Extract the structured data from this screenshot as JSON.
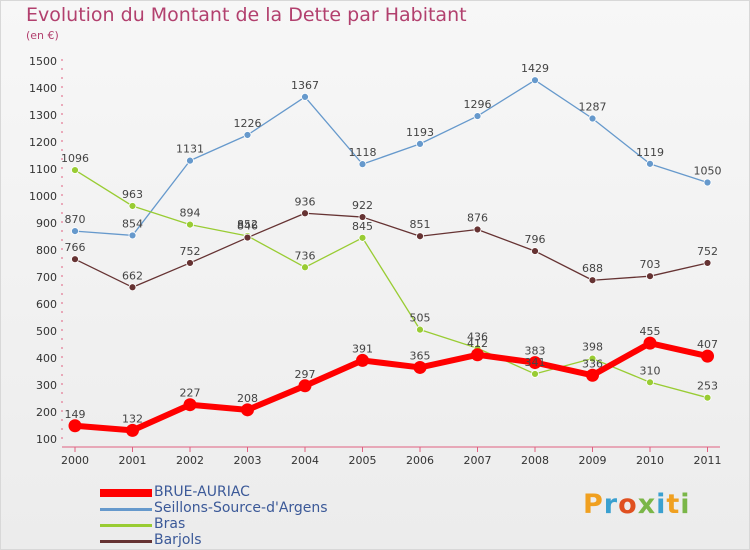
{
  "title": "Evolution du Montant de la Dette par Habitant",
  "subtitle": "(en €)",
  "logo": "Proxiti",
  "chart_data": {
    "type": "line",
    "title": "Evolution du Montant de la Dette par Habitant",
    "ylabel": "(en €)",
    "ylim": [
      100,
      1500
    ],
    "yticks": [
      100,
      200,
      300,
      400,
      500,
      600,
      700,
      800,
      900,
      1000,
      1100,
      1200,
      1300,
      1400,
      1500
    ],
    "categories": [
      "2000",
      "2001",
      "2002",
      "2003",
      "2004",
      "2005",
      "2006",
      "2007",
      "2008",
      "2009",
      "2010",
      "2011"
    ],
    "grid": false,
    "legend_position": "bottom-left",
    "series": [
      {
        "name": "BRUE-AURIAC",
        "color": "#ff0000",
        "values": [
          149,
          132,
          227,
          208,
          297,
          391,
          365,
          412,
          383,
          336,
          455,
          407
        ]
      },
      {
        "name": "Seillons-Source-d'Argens",
        "color": "#6699cc",
        "values": [
          870,
          854,
          1131,
          1226,
          1367,
          1118,
          1193,
          1296,
          1429,
          1287,
          1119,
          1050
        ]
      },
      {
        "name": "Bras",
        "color": "#99cc33",
        "values": [
          1096,
          963,
          894,
          852,
          736,
          845,
          505,
          436,
          341,
          398,
          310,
          253
        ]
      },
      {
        "name": "Barjols",
        "color": "#663333",
        "values": [
          766,
          662,
          752,
          846,
          936,
          922,
          851,
          876,
          796,
          688,
          703,
          752
        ]
      }
    ]
  }
}
